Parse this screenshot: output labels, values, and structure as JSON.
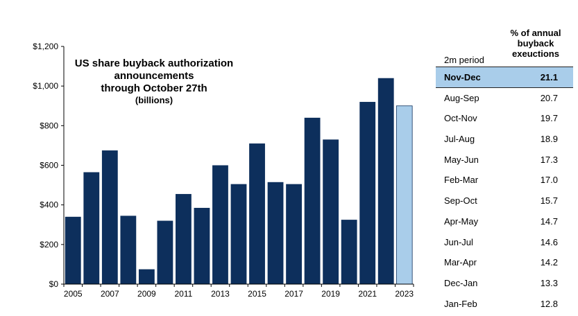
{
  "chart_data": {
    "type": "bar",
    "title_lines": [
      "US share buyback authorization",
      "announcements",
      "through October 27th"
    ],
    "subtitle": "(billions)",
    "categories": [
      "2005",
      "2006",
      "2007",
      "2008",
      "2009",
      "2010",
      "2011",
      "2012",
      "2013",
      "2014",
      "2015",
      "2016",
      "2017",
      "2018",
      "2019",
      "2020",
      "2021",
      "2022",
      "2023"
    ],
    "values": [
      340,
      565,
      675,
      345,
      75,
      320,
      455,
      385,
      600,
      505,
      710,
      515,
      505,
      840,
      730,
      325,
      920,
      1040,
      900
    ],
    "x_tick_labels": [
      "2005",
      "2007",
      "2009",
      "2011",
      "2013",
      "2015",
      "2017",
      "2019",
      "2021",
      "2023"
    ],
    "y_tick_labels": [
      "$0",
      "$200",
      "$400",
      "$600",
      "$800",
      "$1,000",
      "$1,200"
    ],
    "ylim": [
      0,
      1200
    ],
    "xlabel": "",
    "ylabel": "",
    "grid": false,
    "colors": {
      "bar": "#0d2f5c",
      "highlight_bar": "#a9cdea"
    },
    "highlight_category": "2023"
  },
  "table": {
    "header_period": "2m period",
    "header_pct_lines": [
      "% of annual",
      "buyback",
      "exeuctions"
    ],
    "rows": [
      {
        "period": "Nov-Dec",
        "value": "21.1"
      },
      {
        "period": "Aug-Sep",
        "value": "20.7"
      },
      {
        "period": "Oct-Nov",
        "value": "19.7"
      },
      {
        "period": "Jul-Aug",
        "value": "18.9"
      },
      {
        "period": "May-Jun",
        "value": "17.3"
      },
      {
        "period": "Feb-Mar",
        "value": "17.0"
      },
      {
        "period": "Sep-Oct",
        "value": "15.7"
      },
      {
        "period": "Apr-May",
        "value": "14.7"
      },
      {
        "period": "Jun-Jul",
        "value": "14.6"
      },
      {
        "period": "Mar-Apr",
        "value": "14.2"
      },
      {
        "period": "Dec-Jan",
        "value": "13.3"
      },
      {
        "period": "Jan-Feb",
        "value": "12.8"
      }
    ],
    "highlight_color": "#a9cdea"
  }
}
